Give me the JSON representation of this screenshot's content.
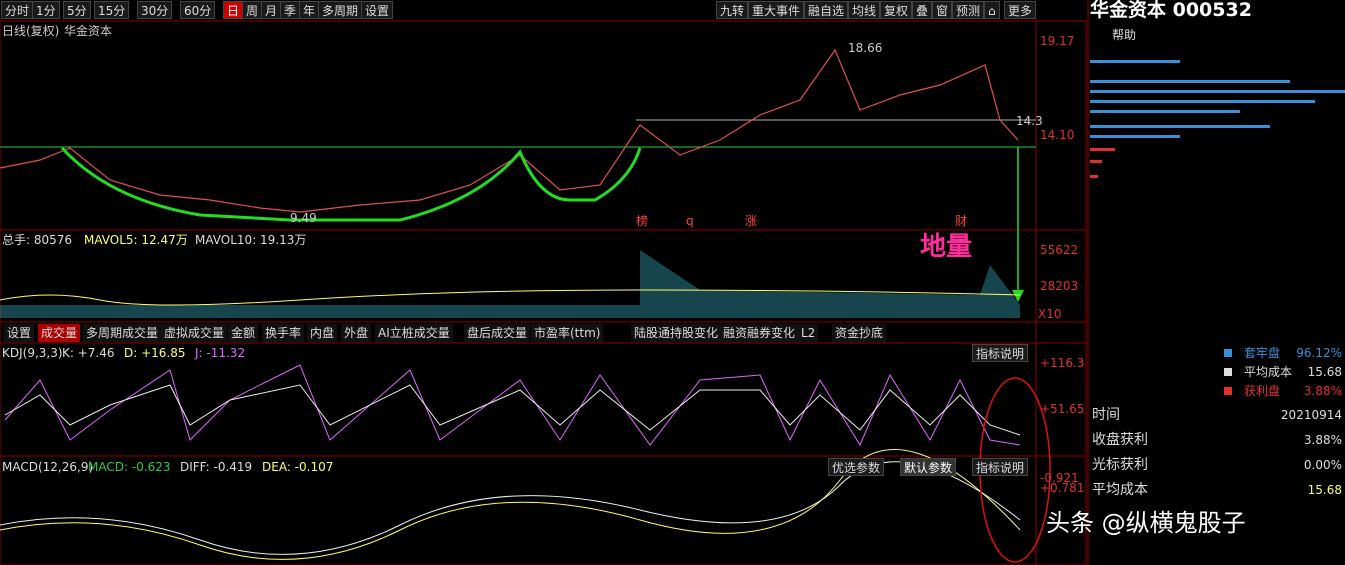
{
  "toolbar": {
    "left": [
      "分时",
      "1分",
      "5分",
      "15分",
      "30分",
      "60分",
      "日",
      "周",
      "月",
      "季",
      "年",
      "多周期",
      "设置"
    ],
    "active": "日",
    "right": [
      "九转",
      "重大事件",
      "融自选",
      "均线",
      "复权",
      "叠",
      "窗",
      "预测",
      "⌂",
      "更多"
    ]
  },
  "header": {
    "title": "华金资本 000532",
    "help": "帮助"
  },
  "price_panel": {
    "title": "日线(复权)",
    "name": "华金资本",
    "axis": [
      "19.17",
      "14.10"
    ],
    "high_label": "18.66",
    "low_label": "9.49",
    "cut_label": "14.3",
    "markers": [
      "榜",
      "q",
      "涨",
      "财"
    ]
  },
  "volume_panel": {
    "total": "总手: 80576",
    "mavol5": "MAVOL5: 12.47万",
    "mavol10": "MAVOL10: 19.13万",
    "axis": [
      "55622",
      "28203",
      "X10"
    ],
    "annotation": "地量"
  },
  "tabs": [
    "设置",
    "成交量",
    "多周期成交量",
    "虚拟成交量",
    "金额",
    "换手率",
    "内盘",
    "外盘",
    "AI立桩成交量",
    "盘后成交量",
    "市盈率(ttm)",
    "陆股通持股变化",
    "融资融券变化",
    "L2",
    "资金抄底"
  ],
  "kdj_panel": {
    "name": "KDJ(9,3,3)",
    "k": "K: +7.46",
    "d": "D: +16.85",
    "j": "J: -11.32",
    "help": "指标说明",
    "axis": [
      "+116.3",
      "+51.65"
    ]
  },
  "macd_panel": {
    "name": "MACD(12,26,9)",
    "macd": "MACD: -0.623",
    "diff": "DIFF: -0.419",
    "dea": "DEA: -0.107",
    "buttons": [
      "优选参数",
      "默认参数",
      "指标说明"
    ],
    "axis": [
      "-0.921",
      "+0.781"
    ]
  },
  "chip_legend": [
    {
      "label": "套牢盘",
      "value": "96.12%"
    },
    {
      "label": "平均成本",
      "value": "15.68"
    },
    {
      "label": "获利盘",
      "value": "3.88%"
    }
  ],
  "info_table": [
    [
      "时间",
      "20210914"
    ],
    [
      "收盘获利",
      "3.88%"
    ],
    [
      "光标获利",
      "0.00%"
    ],
    [
      "平均成本",
      "15.68"
    ]
  ],
  "watermark": "头条 @纵横鬼股子"
}
